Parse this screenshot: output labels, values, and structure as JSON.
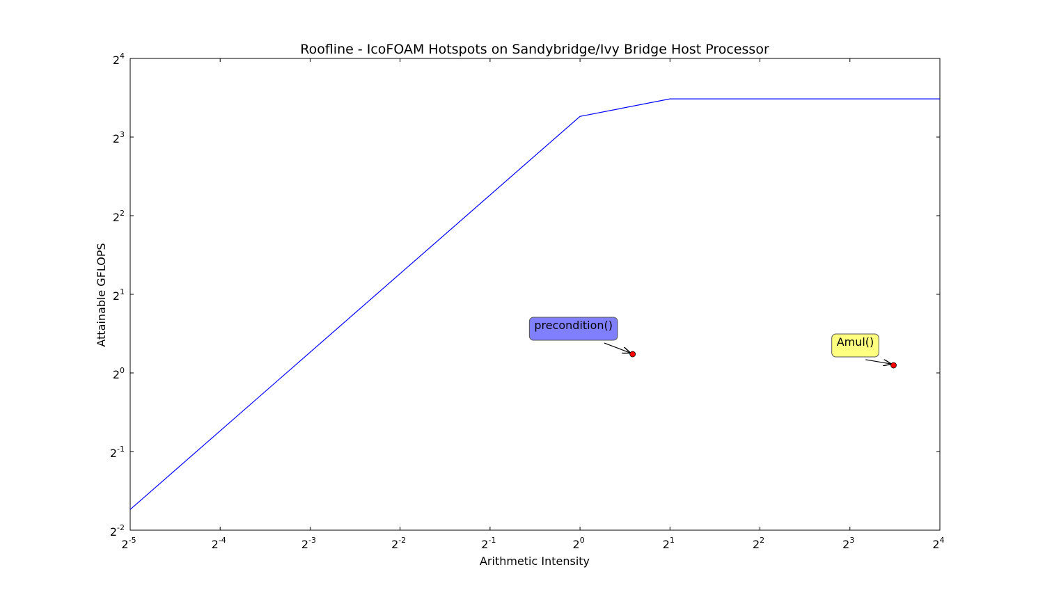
{
  "chart_data": {
    "type": "line",
    "title": "Roofline - IcoFOAM Hotspots on Sandybridge/Ivy Bridge Host Processor",
    "xlabel": "Arithmetic Intensity",
    "ylabel": "Attainable GFLOPS",
    "xscale": "log2",
    "yscale": "log2",
    "xlim": [
      0.03125,
      16
    ],
    "ylim": [
      0.25,
      16
    ],
    "x_ticks": [
      {
        "base": "2",
        "exp": "-5"
      },
      {
        "base": "2",
        "exp": "-4"
      },
      {
        "base": "2",
        "exp": "-3"
      },
      {
        "base": "2",
        "exp": "-2"
      },
      {
        "base": "2",
        "exp": "-1"
      },
      {
        "base": "2",
        "exp": "0"
      },
      {
        "base": "2",
        "exp": "1"
      },
      {
        "base": "2",
        "exp": "2"
      },
      {
        "base": "2",
        "exp": "3"
      },
      {
        "base": "2",
        "exp": "4"
      }
    ],
    "y_ticks": [
      {
        "base": "2",
        "exp": "-2"
      },
      {
        "base": "2",
        "exp": "-1"
      },
      {
        "base": "2",
        "exp": "0"
      },
      {
        "base": "2",
        "exp": "1"
      },
      {
        "base": "2",
        "exp": "2"
      },
      {
        "base": "2",
        "exp": "3"
      },
      {
        "base": "2",
        "exp": "4"
      }
    ],
    "grid": false,
    "series": [
      {
        "color": "#0000ff",
        "x": [
          0.03125,
          1,
          2,
          16
        ],
        "y": [
          0.3,
          9.6,
          11.2,
          11.2
        ]
      }
    ],
    "points": [
      {
        "label": "precondition()",
        "x": 1.5,
        "y": 1.18,
        "color": "#ff0000",
        "box_color": "#8080ff"
      },
      {
        "label": "Amul()",
        "x": 11.2,
        "y": 1.07,
        "color": "#ff0000",
        "box_color": "#ffff80"
      }
    ]
  }
}
